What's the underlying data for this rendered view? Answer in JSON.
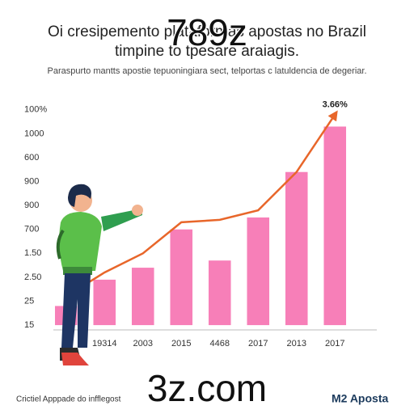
{
  "chart_data": {
    "type": "bar",
    "title": "Oi cresipemento plataformas apostas no Brazil",
    "title_line2": "timpine to tpesare araiagis.",
    "subtitle": "Paraspurto mantts apostie tepuoningiara sect, telportas c latuldencia de degeriar.",
    "overlay_top": "789z",
    "overlay_bottom": "3z.com",
    "annotation": "3.66%",
    "footer": "Crictiel Apppade do infflegost",
    "brand": "M2 Aposta",
    "categories": [
      null,
      "19314",
      "2003",
      "2015",
      "4468",
      "2017",
      "2013",
      "2017"
    ],
    "series": [
      {
        "color": "#f77fb8",
        "values": [
          0.8,
          1.9,
          2.4,
          4.0,
          2.7,
          4.5,
          6.4,
          8.3
        ]
      },
      {
        "color": "#e8662a",
        "type": "line",
        "values": [
          1.2,
          2.2,
          3.0,
          4.3,
          4.4,
          4.8,
          6.4,
          8.8
        ]
      }
    ],
    "ylim": [
      -0.2,
      9.5
    ],
    "yticks": [
      {
        "value": 0,
        "label": "15"
      },
      {
        "value": 1,
        "label": "25"
      },
      {
        "value": 2,
        "label": "2.50"
      },
      {
        "value": 3,
        "label": "1.50"
      },
      {
        "value": 4,
        "label": "700"
      },
      {
        "value": 5,
        "label": "900"
      },
      {
        "value": 6,
        "label": "900"
      },
      {
        "value": 7,
        "label": "600"
      },
      {
        "value": 8,
        "label": "1000"
      },
      {
        "value": 9,
        "label": "100%"
      }
    ]
  }
}
